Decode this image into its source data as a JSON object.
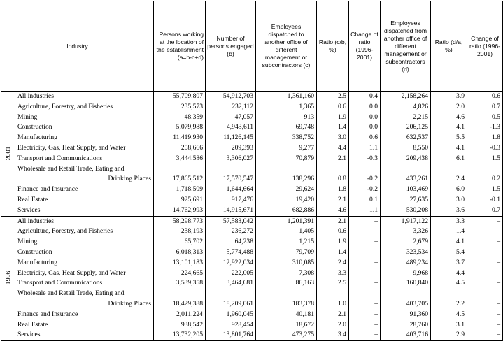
{
  "header": {
    "industry": "Industry",
    "persons_working": "Persons working at the location of the establishment (a=b-c+d)",
    "persons_engaged": "Number of persons engaged (b)",
    "dispatched_to": "Employees dispatched to another office of different management or subcontractors (c)",
    "ratio_c": "Ratio (c/b, %)",
    "change_c": "Change of ratio (1996-2001)",
    "dispatched_from": "Employees dispatched from another office of different management or subcontractors (d)",
    "ratio_d": "Ratio (d/a, %)",
    "change_d": "Change of ratio (1996-2001)"
  },
  "groups": [
    {
      "year": "2001",
      "rows": [
        {
          "label": [
            "All industries"
          ],
          "cells": [
            "55,709,807",
            "54,912,703",
            "1,361,160",
            "2.5",
            "0.4",
            "2,158,264",
            "3.9",
            "0.6"
          ]
        },
        {
          "label": [
            "Agriculture, Forestry, and Fisheries"
          ],
          "cells": [
            "235,573",
            "232,112",
            "1,365",
            "0.6",
            "0.0",
            "4,826",
            "2.0",
            "0.7"
          ]
        },
        {
          "label": [
            "Mining"
          ],
          "cells": [
            "48,359",
            "47,057",
            "913",
            "1.9",
            "0.0",
            "2,215",
            "4.6",
            "0.5"
          ]
        },
        {
          "label": [
            "Construction"
          ],
          "cells": [
            "5,079,988",
            "4,943,611",
            "69,748",
            "1.4",
            "0.0",
            "206,125",
            "4.1",
            "-1.3"
          ]
        },
        {
          "label": [
            "Manufacturing"
          ],
          "cells": [
            "11,419,930",
            "11,126,145",
            "338,752",
            "3.0",
            "0.6",
            "632,537",
            "5.5",
            "1.8"
          ]
        },
        {
          "label": [
            "Electricity, Gas, Heat Supply, and Water"
          ],
          "cells": [
            "208,666",
            "209,393",
            "9,277",
            "4.4",
            "1.1",
            "8,550",
            "4.1",
            "-0.3"
          ]
        },
        {
          "label": [
            "Transport and Communications"
          ],
          "cells": [
            "3,444,586",
            "3,306,027",
            "70,879",
            "2.1",
            "-0.3",
            "209,438",
            "6.1",
            "1.5"
          ]
        },
        {
          "label": [
            "Wholesale and Retail Trade, Eating and",
            "Drinking Places"
          ],
          "cells": [
            "17,865,512",
            "17,570,547",
            "138,296",
            "0.8",
            "-0.2",
            "433,261",
            "2.4",
            "0.2"
          ]
        },
        {
          "label": [
            "Finance and Insurance"
          ],
          "cells": [
            "1,718,509",
            "1,644,664",
            "29,624",
            "1.8",
            "-0.2",
            "103,469",
            "6.0",
            "1.5"
          ]
        },
        {
          "label": [
            "Real Estate"
          ],
          "cells": [
            "925,691",
            "917,476",
            "19,420",
            "2.1",
            "0.1",
            "27,635",
            "3.0",
            "-0.1"
          ]
        },
        {
          "label": [
            "Services"
          ],
          "cells": [
            "14,762,993",
            "14,915,671",
            "682,886",
            "4.6",
            "1.1",
            "530,208",
            "3.6",
            "0.7"
          ]
        }
      ]
    },
    {
      "year": "1996",
      "rows": [
        {
          "label": [
            "All industries"
          ],
          "cells": [
            "58,298,773",
            "57,583,042",
            "1,201,391",
            "2.1",
            "–",
            "1,917,122",
            "3.3",
            "–"
          ]
        },
        {
          "label": [
            "Agriculture, Forestry, and Fisheries"
          ],
          "cells": [
            "238,193",
            "236,272",
            "1,405",
            "0.6",
            "–",
            "3,326",
            "1.4",
            "–"
          ]
        },
        {
          "label": [
            "Mining"
          ],
          "cells": [
            "65,702",
            "64,238",
            "1,215",
            "1.9",
            "–",
            "2,679",
            "4.1",
            "–"
          ]
        },
        {
          "label": [
            "Construction"
          ],
          "cells": [
            "6,018,313",
            "5,774,488",
            "79,709",
            "1.4",
            "–",
            "323,534",
            "5.4",
            "–"
          ]
        },
        {
          "label": [
            "Manufacturing"
          ],
          "cells": [
            "13,101,183",
            "12,922,034",
            "310,085",
            "2.4",
            "–",
            "489,234",
            "3.7",
            "–"
          ]
        },
        {
          "label": [
            "Electricity, Gas, Heat Supply, and Water"
          ],
          "cells": [
            "224,665",
            "222,005",
            "7,308",
            "3.3",
            "–",
            "9,968",
            "4.4",
            "–"
          ]
        },
        {
          "label": [
            "Transport and Communications"
          ],
          "cells": [
            "3,539,358",
            "3,464,681",
            "86,163",
            "2.5",
            "–",
            "160,840",
            "4.5",
            "–"
          ]
        },
        {
          "label": [
            "Wholesale and Retail Trade, Eating and",
            "Drinking Places"
          ],
          "cells": [
            "18,429,388",
            "18,209,061",
            "183,378",
            "1.0",
            "–",
            "403,705",
            "2.2",
            "–"
          ]
        },
        {
          "label": [
            "Finance and Insurance"
          ],
          "cells": [
            "2,011,224",
            "1,960,045",
            "40,181",
            "2.1",
            "–",
            "91,360",
            "4.5",
            "–"
          ]
        },
        {
          "label": [
            "Real Estate"
          ],
          "cells": [
            "938,542",
            "928,454",
            "18,672",
            "2.0",
            "–",
            "28,760",
            "3.1",
            "–"
          ]
        },
        {
          "label": [
            "Services"
          ],
          "cells": [
            "13,732,205",
            "13,801,764",
            "473,275",
            "3.4",
            "–",
            "403,716",
            "2.9",
            "–"
          ]
        }
      ]
    }
  ]
}
